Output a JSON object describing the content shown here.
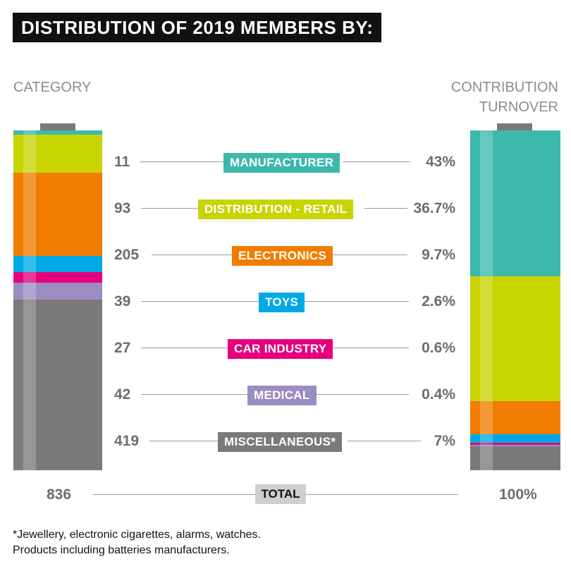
{
  "title": "DISTRIBUTION OF 2019 MEMBERS BY:",
  "left_header": "CATEGORY",
  "right_header": [
    "CONTRIBUTION",
    "TURNOVER"
  ],
  "chart_data": {
    "type": "bar",
    "categories": [
      "MANUFACTURER",
      "DISTRIBUTION - RETAIL",
      "ELECTRONICS",
      "TOYS",
      "CAR INDUSTRY",
      "MEDICAL",
      "MISCELLANEOUS*"
    ],
    "colors": [
      "#3cb9ac",
      "#c8d400",
      "#f07d00",
      "#00a9e5",
      "#e6007e",
      "#9a8dc2",
      "#7a7a7a"
    ],
    "series": [
      {
        "name": "CATEGORY",
        "values": [
          11,
          93,
          205,
          39,
          27,
          42,
          419
        ],
        "total": 836
      },
      {
        "name": "CONTRIBUTION TURNOVER",
        "values": [
          43,
          36.7,
          9.7,
          2.6,
          0.6,
          0.4,
          7
        ],
        "unit": "%",
        "total": 100
      }
    ],
    "value_labels": {
      "counts": [
        "11",
        "93",
        "205",
        "39",
        "27",
        "42",
        "419"
      ],
      "percents": [
        "43%",
        "36.7%",
        "9.7%",
        "2.6%",
        "0.6%",
        "0.4%",
        "7%"
      ]
    },
    "total_label": "TOTAL",
    "total_count": "836",
    "total_percent": "100%"
  },
  "footnote": [
    "*Jewellery, electronic cigarettes, alarms, watches.",
    "Products including batteries manufacturers."
  ]
}
